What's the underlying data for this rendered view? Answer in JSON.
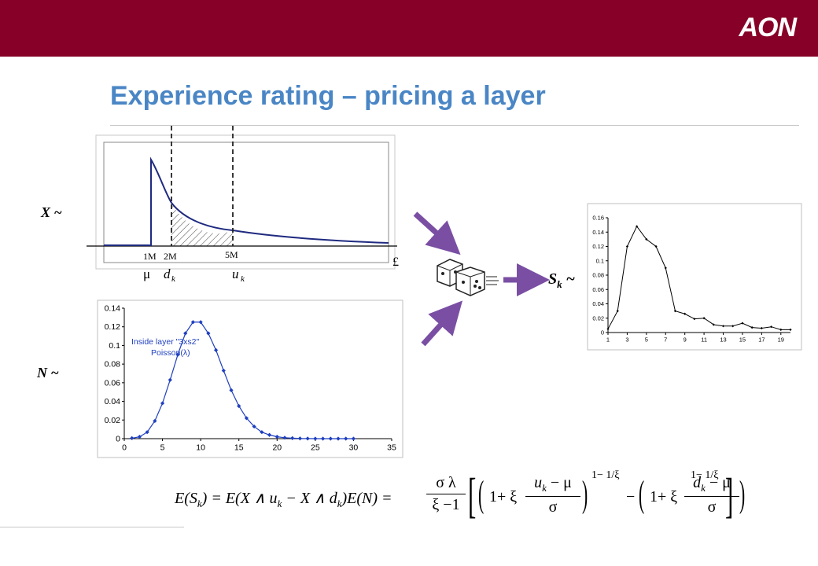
{
  "header": {
    "logo_text": "AON",
    "brand_color": "#870027"
  },
  "title": "Experience rating – pricing a layer",
  "severity": {
    "label": "X ~",
    "tick_labels": [
      "1M",
      "2M",
      "5M"
    ],
    "symbols": [
      "μ",
      "d",
      "k",
      "u",
      "k"
    ],
    "currency": "£"
  },
  "frequency": {
    "label": "N ~",
    "legend_line1": "Inside layer \"3xs2\"",
    "legend_line2": "Poisson(λ)"
  },
  "aggregate": {
    "label_main": "S",
    "label_sub": "k",
    "label_tilde": "~"
  },
  "formula": {
    "lhs": "E(S",
    "lhs_sub": "k",
    "lhs_end": ") = E(X ∧ u",
    "mid": " − X ∧ d",
    "mid_end": ")E(N) =",
    "frac_num": "σ λ",
    "frac_den": "ξ −1",
    "t1_a": "1+ ξ",
    "t1_num": "u",
    "t1_num_tail": " − μ",
    "t1_den": "σ",
    "exp": "1− 1/ξ",
    "minus": "−",
    "t2_a": "1+ ξ",
    "t2_num": "d",
    "t2_num_tail": " − μ",
    "t2_den": "σ"
  },
  "chart_data": [
    {
      "type": "line",
      "title": "",
      "series": [
        {
          "name": "Inside layer \"3xs2\" Poisson(λ)",
          "x": [
            1,
            2,
            3,
            4,
            5,
            6,
            7,
            8,
            9,
            10,
            11,
            12,
            13,
            14,
            15,
            16,
            17,
            18,
            19,
            20,
            21,
            22,
            23,
            24,
            25,
            26,
            27,
            28,
            29,
            30
          ],
          "values": [
            0.0005,
            0.002,
            0.007,
            0.019,
            0.038,
            0.063,
            0.09,
            0.113,
            0.125,
            0.125,
            0.113,
            0.095,
            0.073,
            0.052,
            0.035,
            0.022,
            0.013,
            0.007,
            0.004,
            0.002,
            0.001,
            0.0005,
            0.0002,
            0.0001,
            0,
            0,
            0,
            0,
            0,
            0
          ]
        }
      ],
      "xlim": [
        0,
        35
      ],
      "ylim": [
        0,
        0.14
      ],
      "x_ticks": [
        "0",
        "5",
        "10",
        "15",
        "20",
        "25",
        "30",
        "35"
      ],
      "y_ticks": [
        "0",
        "0.02",
        "0.04",
        "0.06",
        "0.08",
        "0.1",
        "0.12",
        "0.14"
      ],
      "color": "#1f3fbf"
    },
    {
      "type": "line",
      "title": "",
      "series": [
        {
          "name": "",
          "x": [
            1,
            2,
            3,
            4,
            5,
            6,
            7,
            8,
            9,
            10,
            11,
            12,
            13,
            14,
            15,
            16,
            17,
            18,
            19,
            20
          ],
          "values": [
            0.005,
            0.03,
            0.12,
            0.148,
            0.13,
            0.12,
            0.09,
            0.03,
            0.026,
            0.019,
            0.02,
            0.011,
            0.009,
            0.009,
            0.013,
            0.007,
            0.006,
            0.008,
            0.004,
            0.004
          ]
        }
      ],
      "xlim": [
        1,
        20
      ],
      "ylim": [
        0,
        0.16
      ],
      "x_ticks": [
        "1",
        "3",
        "5",
        "7",
        "9",
        "11",
        "13",
        "15",
        "17",
        "19"
      ],
      "y_ticks": [
        "0",
        "0.02",
        "0.04",
        "0.06",
        "0.08",
        "0.1",
        "0.12",
        "0.14",
        "0.16"
      ],
      "color": "#000000"
    }
  ],
  "colors": {
    "title": "#4a86c5",
    "arrow": "#7a4fa3",
    "severity_curve": "#1f2a80"
  }
}
